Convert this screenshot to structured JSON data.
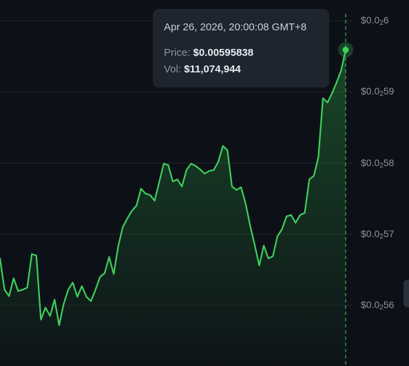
{
  "chart_data": {
    "type": "area",
    "y_ticks": [
      {
        "value": 0.006,
        "prefix": "$0.0",
        "sub": "2",
        "suffix": "6"
      },
      {
        "value": 0.0059,
        "prefix": "$0.0",
        "sub": "2",
        "suffix": "59"
      },
      {
        "value": 0.0058,
        "prefix": "$0.0",
        "sub": "2",
        "suffix": "58"
      },
      {
        "value": 0.0057,
        "prefix": "$0.0",
        "sub": "2",
        "suffix": "57"
      },
      {
        "value": 0.0056,
        "prefix": "$0.0",
        "sub": "2",
        "suffix": "56"
      }
    ],
    "y_range": [
      0.00555,
      0.00602
    ],
    "grid": true,
    "line_color": "#3fd15b",
    "series_values": [
      0.005666,
      0.005622,
      0.005613,
      0.005638,
      0.00562,
      0.005622,
      0.005625,
      0.005672,
      0.00567,
      0.00558,
      0.005597,
      0.005585,
      0.005608,
      0.005572,
      0.005602,
      0.005622,
      0.005632,
      0.005612,
      0.005627,
      0.005612,
      0.005606,
      0.005622,
      0.00564,
      0.005645,
      0.005668,
      0.005644,
      0.005683,
      0.00571,
      0.005722,
      0.005733,
      0.00574,
      0.005764,
      0.005757,
      0.005755,
      0.005747,
      0.005773,
      0.005799,
      0.005797,
      0.005774,
      0.005777,
      0.005767,
      0.00579,
      0.005799,
      0.005796,
      0.005791,
      0.005785,
      0.005789,
      0.00579,
      0.005802,
      0.005824,
      0.005818,
      0.005767,
      0.005762,
      0.005766,
      0.005743,
      0.005712,
      0.005685,
      0.005656,
      0.005684,
      0.005666,
      0.005669,
      0.005697,
      0.005707,
      0.005725,
      0.005727,
      0.005716,
      0.005727,
      0.00573,
      0.005777,
      0.005782,
      0.005808,
      0.005891,
      0.005885,
      0.005898,
      0.005913,
      0.00593,
      0.005959
    ],
    "crosshair_index": 76
  },
  "tooltip": {
    "date": "Apr 26, 2026, 20:00:08 GMT+8",
    "price_label": "Price:",
    "price_value": "$0.00595838",
    "vol_label": "Vol:",
    "vol_value": "$11,074,944"
  }
}
